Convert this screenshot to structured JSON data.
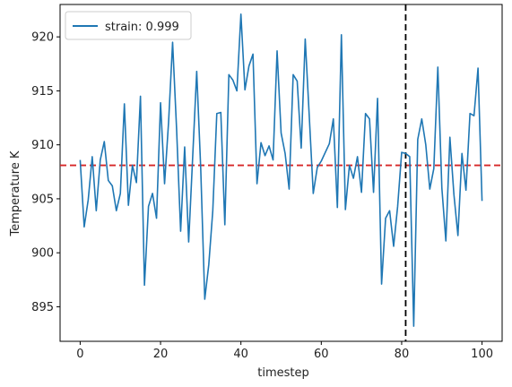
{
  "chart_data": {
    "type": "line",
    "title": "",
    "xlabel": "timestep",
    "ylabel": "Temperature K",
    "xlim": [
      -5,
      105
    ],
    "ylim": [
      891.8,
      923.0
    ],
    "xticks": [
      0,
      20,
      40,
      60,
      80,
      100
    ],
    "yticks": [
      895,
      900,
      905,
      910,
      915,
      920
    ],
    "grid": false,
    "legend_position": "top-left",
    "series": [
      {
        "name": "strain: 0.999",
        "color": "#1f77b4",
        "x": [
          0,
          1,
          2,
          3,
          4,
          5,
          6,
          7,
          8,
          9,
          10,
          11,
          12,
          13,
          14,
          15,
          16,
          17,
          18,
          19,
          20,
          21,
          22,
          23,
          24,
          25,
          26,
          27,
          28,
          29,
          30,
          31,
          32,
          33,
          34,
          35,
          36,
          37,
          38,
          39,
          40,
          41,
          42,
          43,
          44,
          45,
          46,
          47,
          48,
          49,
          50,
          51,
          52,
          53,
          54,
          55,
          56,
          57,
          58,
          59,
          60,
          61,
          62,
          63,
          64,
          65,
          66,
          67,
          68,
          69,
          70,
          71,
          72,
          73,
          74,
          75,
          76,
          77,
          78,
          79,
          80,
          81,
          82,
          83,
          84,
          85,
          86,
          87,
          88,
          89,
          90,
          91,
          92,
          93,
          94,
          95,
          96,
          97,
          98,
          99,
          100
        ],
        "values": [
          908.6,
          902.4,
          904.9,
          908.9,
          903.9,
          908.6,
          910.3,
          906.7,
          906.2,
          903.9,
          905.5,
          913.8,
          904.4,
          908.1,
          906.5,
          914.5,
          897.0,
          904.3,
          905.5,
          903.2,
          913.9,
          906.4,
          912.1,
          919.5,
          911.4,
          902.0,
          909.8,
          901.0,
          908.9,
          916.8,
          907.8,
          895.7,
          898.9,
          903.9,
          912.9,
          913.0,
          902.6,
          916.5,
          916.0,
          915.0,
          922.1,
          915.1,
          917.3,
          918.4,
          906.4,
          910.2,
          909.0,
          909.9,
          908.6,
          918.7,
          911.1,
          909.2,
          905.9,
          916.5,
          915.9,
          909.7,
          919.8,
          912.7,
          905.5,
          907.9,
          908.5,
          909.3,
          910.1,
          912.4,
          904.2,
          920.2,
          904.0,
          908.1,
          906.9,
          908.9,
          905.6,
          912.9,
          912.4,
          905.6,
          914.3,
          897.1,
          903.2,
          903.9,
          900.6,
          904.3,
          909.3,
          909.2,
          908.9,
          893.2,
          910.5,
          912.4,
          910.0,
          905.9,
          907.8,
          917.2,
          906.0,
          901.1,
          910.7,
          905.4,
          901.6,
          909.2,
          905.8,
          912.9,
          912.7,
          917.1,
          904.8
        ]
      }
    ],
    "reference_lines": [
      {
        "orientation": "horizontal",
        "value": 908.1,
        "color": "#d62728",
        "style": "dashed"
      },
      {
        "orientation": "vertical",
        "value": 81,
        "color": "#000000",
        "style": "dashed"
      }
    ]
  }
}
